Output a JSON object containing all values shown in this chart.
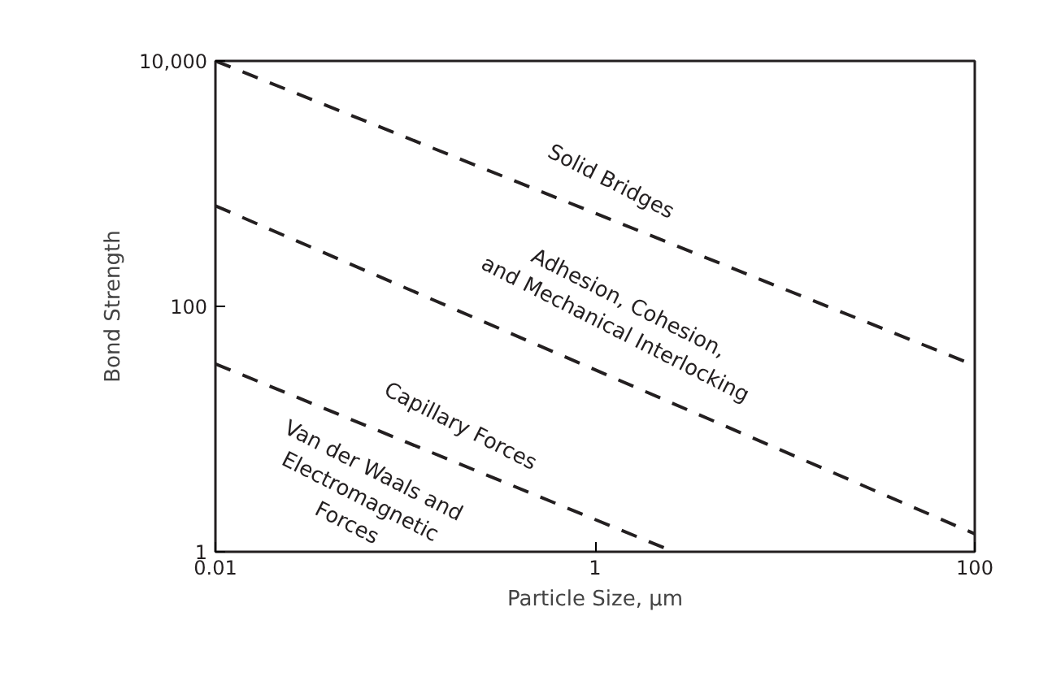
{
  "chart_data": {
    "type": "line",
    "xlabel": "Particle Size, μm",
    "ylabel": "Bond Strength",
    "log": "xy",
    "xlim": [
      0.01,
      100
    ],
    "ylim": [
      1,
      10000
    ],
    "xticks": [
      0.01,
      1,
      100
    ],
    "yticks": [
      1,
      100,
      {
        "value": 10000,
        "label": "10,000"
      }
    ],
    "grid": false,
    "line_style": "dashed",
    "marker": "none",
    "series": [
      {
        "name": "Solid Bridges",
        "color": "#231f20",
        "x": [
          0.01,
          100
        ],
        "values": [
          10000,
          33
        ]
      },
      {
        "name": "Adhesion, Cohesion,\nand Mechanical Interlocking",
        "color": "#231f20",
        "x": [
          0.01,
          100
        ],
        "values": [
          660,
          1.4
        ]
      },
      {
        "name": "Capillary Forces",
        "color": "#231f20",
        "x": [
          0.01,
          2.6
        ],
        "values": [
          34,
          1
        ]
      }
    ],
    "annotations": [
      "Van der Waals and\nElectromagnetic\nForces"
    ]
  }
}
